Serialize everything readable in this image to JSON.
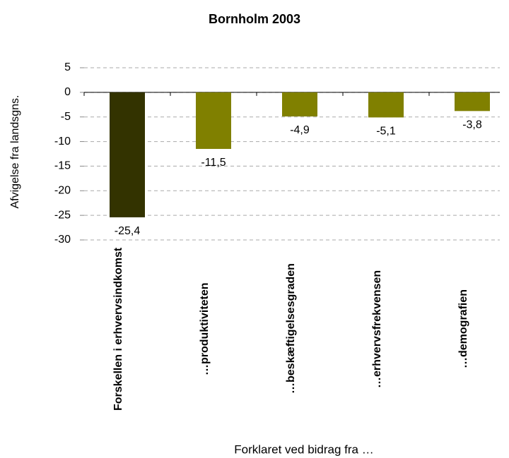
{
  "chart_data": {
    "type": "bar",
    "title": "Bornholm 2003",
    "y_label": "Afvigelse fra landsgns.",
    "x_label": "Forklaret ved bidrag fra …",
    "categories": [
      "Forskellen i erhvervsindkomst",
      "…produktiviteten",
      "…beskæftigelsesgraden",
      "…erhvervsfrekvensen",
      "…demografien"
    ],
    "values": [
      -25.4,
      -11.5,
      -4.9,
      -5.1,
      -3.8
    ],
    "value_labels": [
      "-25,4",
      "-11,5",
      "-4,9",
      "-5,1",
      "-3,8"
    ],
    "colors": [
      "#333300",
      "#808000",
      "#808000",
      "#808000",
      "#808000"
    ],
    "ylim": [
      -30,
      5
    ],
    "yticks": [
      5,
      0,
      -5,
      -10,
      -15,
      -20,
      -25,
      -30
    ],
    "grid": true
  }
}
